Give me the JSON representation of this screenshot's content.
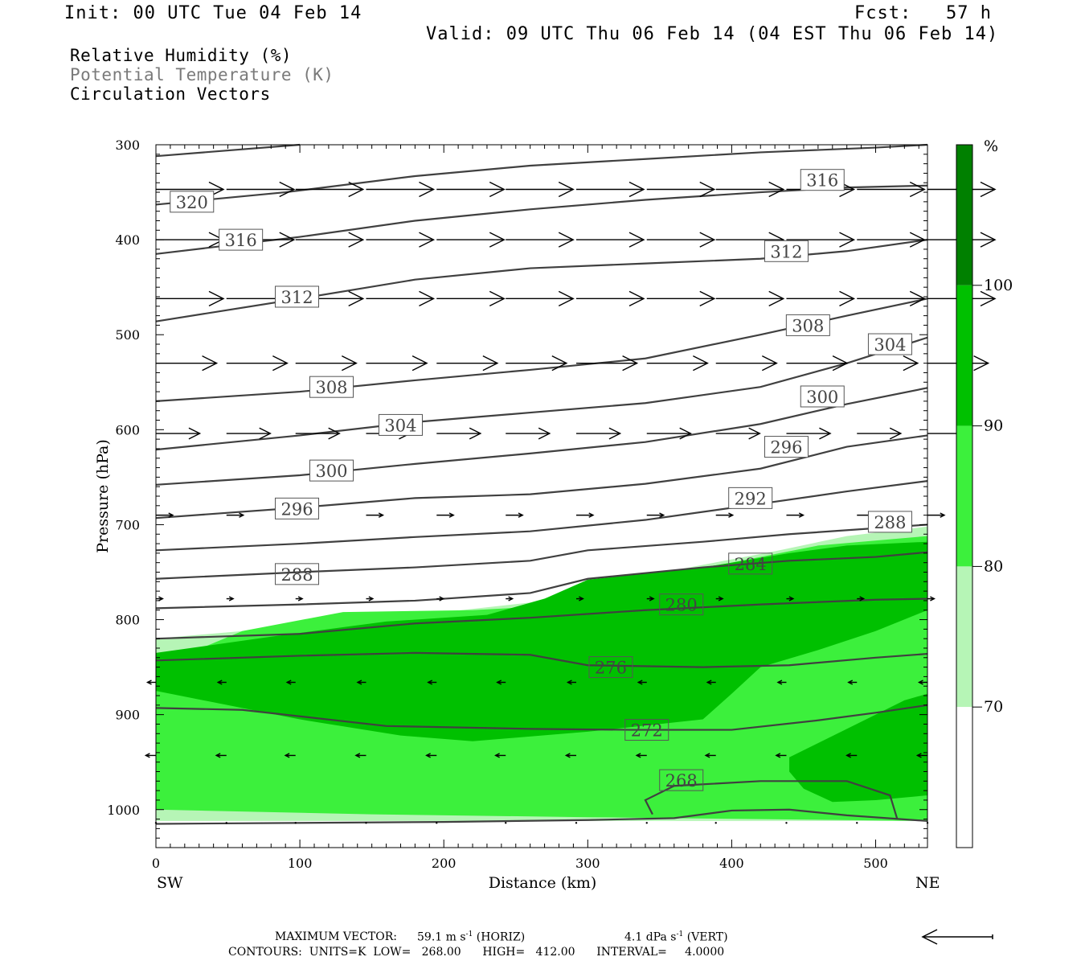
{
  "header": {
    "init": "Init: 00 UTC Tue 04 Feb 14",
    "fcst": "Fcst:   57 h",
    "valid": "Valid: 09 UTC Thu 06 Feb 14 (04 EST Thu 06 Feb 14)"
  },
  "legend": {
    "line1": "Relative Humidity (%)",
    "line2": "Potential Temperature (K)",
    "line3": "Circulation Vectors"
  },
  "colors": {
    "rh_70_80": "#b6f5b6",
    "rh_80_90": "#3cf03c",
    "rh_90_100": "#00c000",
    "rh_100": "#008000",
    "theta_line": "#404040",
    "legend2": "#7a7a7a"
  },
  "footer": {
    "max_vector_label": "MAXIMUM VECTOR:",
    "max_horiz": "59.1 m s",
    "max_horiz_unit": "(HORIZ)",
    "max_vert": "4.1 dPa s",
    "max_vert_unit": "(VERT)",
    "exponent": "-1",
    "contours": "CONTOURS:  UNITS=K  LOW=   268.00      HIGH=   412.00      INTERVAL=     4.0000"
  },
  "chart_data": {
    "type": "cross-section",
    "xlabel": "Distance (km)",
    "ylabel": "Pressure (hPa)",
    "xlim": [
      0,
      536
    ],
    "ylim": [
      1040,
      300
    ],
    "x_ticks": [
      0,
      100,
      200,
      300,
      400,
      500
    ],
    "y_ticks": [
      300,
      400,
      500,
      600,
      700,
      800,
      900,
      1000
    ],
    "x_end_labels": [
      "SW",
      "NE"
    ],
    "colorbar": {
      "unit": "%",
      "levels": [
        70,
        80,
        90,
        100
      ]
    },
    "rh_fill": [
      {
        "level": "70-80",
        "points": [
          [
            0,
            820
          ],
          [
            60,
            812
          ],
          [
            120,
            798
          ],
          [
            200,
            792
          ],
          [
            260,
            782
          ],
          [
            300,
            765
          ],
          [
            360,
            748
          ],
          [
            430,
            728
          ],
          [
            480,
            712
          ],
          [
            536,
            702
          ],
          [
            536,
            1012
          ],
          [
            0,
            1012
          ]
        ]
      },
      {
        "level": "80-90",
        "points": [
          [
            0,
            850
          ],
          [
            60,
            812
          ],
          [
            130,
            792
          ],
          [
            220,
            790
          ],
          [
            280,
            785
          ],
          [
            320,
            760
          ],
          [
            400,
            740
          ],
          [
            460,
            722
          ],
          [
            536,
            712
          ],
          [
            536,
            1012
          ],
          [
            420,
            1010
          ],
          [
            300,
            1008
          ],
          [
            150,
            1005
          ],
          [
            0,
            1000
          ]
        ]
      },
      {
        "level": "90-100",
        "points": [
          [
            0,
            835
          ],
          [
            80,
            818
          ],
          [
            160,
            802
          ],
          [
            230,
            795
          ],
          [
            270,
            778
          ],
          [
            300,
            758
          ],
          [
            380,
            745
          ],
          [
            440,
            730
          ],
          [
            480,
            722
          ],
          [
            536,
            718
          ],
          [
            536,
            790
          ],
          [
            500,
            812
          ],
          [
            460,
            832
          ],
          [
            420,
            850
          ],
          [
            400,
            878
          ],
          [
            380,
            905
          ],
          [
            300,
            918
          ],
          [
            220,
            928
          ],
          [
            170,
            922
          ],
          [
            100,
            905
          ],
          [
            0,
            875
          ]
        ]
      },
      {
        "level": "90-100",
        "points": [
          [
            440,
            945
          ],
          [
            480,
            915
          ],
          [
            520,
            885
          ],
          [
            536,
            878
          ],
          [
            536,
            985
          ],
          [
            500,
            990
          ],
          [
            470,
            992
          ],
          [
            450,
            978
          ],
          [
            440,
            960
          ]
        ]
      }
    ],
    "theta_contours": [
      {
        "value": 320,
        "points": [
          [
            0,
            312
          ],
          [
            100,
            300
          ]
        ]
      },
      {
        "value": 320,
        "points": [
          [
            0,
            363
          ],
          [
            90,
            350
          ],
          [
            180,
            333
          ],
          [
            260,
            322
          ],
          [
            340,
            315
          ],
          [
            420,
            308
          ],
          [
            500,
            303
          ],
          [
            536,
            300
          ]
        ]
      },
      {
        "value": 316,
        "points": [
          [
            0,
            415
          ],
          [
            100,
            397
          ],
          [
            180,
            380
          ],
          [
            260,
            368
          ],
          [
            340,
            358
          ],
          [
            420,
            350
          ],
          [
            480,
            345
          ],
          [
            536,
            343
          ]
        ]
      },
      {
        "value": 312,
        "points": [
          [
            0,
            486
          ],
          [
            100,
            462
          ],
          [
            180,
            442
          ],
          [
            260,
            430
          ],
          [
            340,
            425
          ],
          [
            420,
            420
          ],
          [
            480,
            412
          ],
          [
            536,
            400
          ]
        ]
      },
      {
        "value": 308,
        "points": [
          [
            0,
            570
          ],
          [
            100,
            560
          ],
          [
            180,
            548
          ],
          [
            260,
            537
          ],
          [
            340,
            525
          ],
          [
            420,
            500
          ],
          [
            480,
            480
          ],
          [
            536,
            462
          ]
        ]
      },
      {
        "value": 304,
        "points": [
          [
            0,
            621
          ],
          [
            100,
            606
          ],
          [
            180,
            592
          ],
          [
            260,
            582
          ],
          [
            340,
            572
          ],
          [
            420,
            555
          ],
          [
            480,
            530
          ],
          [
            536,
            503
          ]
        ]
      },
      {
        "value": 300,
        "points": [
          [
            0,
            658
          ],
          [
            100,
            648
          ],
          [
            180,
            636
          ],
          [
            260,
            625
          ],
          [
            340,
            613
          ],
          [
            420,
            594
          ],
          [
            480,
            573
          ],
          [
            536,
            556
          ]
        ]
      },
      {
        "value": 296,
        "points": [
          [
            0,
            693
          ],
          [
            100,
            682
          ],
          [
            180,
            672
          ],
          [
            260,
            668
          ],
          [
            340,
            657
          ],
          [
            420,
            641
          ],
          [
            480,
            618
          ],
          [
            536,
            606
          ]
        ]
      },
      {
        "value": 292,
        "points": [
          [
            0,
            727
          ],
          [
            100,
            720
          ],
          [
            180,
            713
          ],
          [
            260,
            707
          ],
          [
            340,
            695
          ],
          [
            420,
            678
          ],
          [
            480,
            665
          ],
          [
            536,
            654
          ]
        ]
      },
      {
        "value": 288,
        "points": [
          [
            0,
            757
          ],
          [
            100,
            750
          ],
          [
            180,
            745
          ],
          [
            260,
            738
          ],
          [
            300,
            727
          ],
          [
            380,
            718
          ],
          [
            440,
            710
          ],
          [
            536,
            700
          ]
        ]
      },
      {
        "value": 284,
        "points": [
          [
            0,
            788
          ],
          [
            100,
            784
          ],
          [
            180,
            780
          ],
          [
            260,
            772
          ],
          [
            300,
            757
          ],
          [
            380,
            745
          ],
          [
            440,
            738
          ],
          [
            500,
            734
          ],
          [
            536,
            729
          ]
        ]
      },
      {
        "value": 280,
        "points": [
          [
            0,
            820
          ],
          [
            100,
            815
          ],
          [
            180,
            804
          ],
          [
            260,
            798
          ],
          [
            340,
            790
          ],
          [
            420,
            784
          ],
          [
            500,
            779
          ],
          [
            536,
            778
          ]
        ]
      },
      {
        "value": 276,
        "points": [
          [
            0,
            843
          ],
          [
            100,
            838
          ],
          [
            180,
            835
          ],
          [
            260,
            837
          ],
          [
            300,
            848
          ],
          [
            380,
            850
          ],
          [
            440,
            848
          ],
          [
            500,
            840
          ],
          [
            536,
            836
          ]
        ]
      },
      {
        "value": 272,
        "points": [
          [
            0,
            893
          ],
          [
            60,
            895
          ],
          [
            160,
            912
          ],
          [
            260,
            915
          ],
          [
            330,
            916
          ],
          [
            400,
            916
          ],
          [
            460,
            906
          ],
          [
            500,
            898
          ],
          [
            536,
            890
          ]
        ]
      },
      {
        "value": 268,
        "points": [
          [
            345,
            1005
          ],
          [
            340,
            990
          ],
          [
            360,
            975
          ],
          [
            420,
            970
          ],
          [
            480,
            970
          ],
          [
            510,
            985
          ],
          [
            515,
            1010
          ]
        ]
      },
      {
        "value": 268,
        "points": [
          [
            0,
            1015
          ],
          [
            200,
            1013
          ],
          [
            300,
            1011
          ],
          [
            360,
            1009
          ],
          [
            400,
            1001
          ],
          [
            440,
            1000
          ],
          [
            480,
            1006
          ],
          [
            536,
            1012
          ]
        ]
      }
    ],
    "contour_labels": [
      {
        "value": "320",
        "x": 25,
        "p": 360
      },
      {
        "value": "316",
        "x": 59,
        "p": 400
      },
      {
        "value": "316",
        "x": 463,
        "p": 337
      },
      {
        "value": "312",
        "x": 98,
        "p": 460
      },
      {
        "value": "312",
        "x": 438,
        "p": 412
      },
      {
        "value": "308",
        "x": 122,
        "p": 555
      },
      {
        "value": "308",
        "x": 453,
        "p": 490
      },
      {
        "value": "304",
        "x": 170,
        "p": 595
      },
      {
        "value": "304",
        "x": 510,
        "p": 510
      },
      {
        "value": "300",
        "x": 122,
        "p": 643
      },
      {
        "value": "300",
        "x": 463,
        "p": 565
      },
      {
        "value": "296",
        "x": 98,
        "p": 683
      },
      {
        "value": "296",
        "x": 438,
        "p": 618
      },
      {
        "value": "292",
        "x": 413,
        "p": 672
      },
      {
        "value": "288",
        "x": 98,
        "p": 752
      },
      {
        "value": "288",
        "x": 510,
        "p": 697
      },
      {
        "value": "284",
        "x": 413,
        "p": 741
      },
      {
        "value": "280",
        "x": 365,
        "p": 784
      },
      {
        "value": "276",
        "x": 316,
        "p": 850
      },
      {
        "value": "272",
        "x": 341,
        "p": 916
      },
      {
        "value": "268",
        "x": 365,
        "p": 969
      }
    ],
    "vectors_x": [
      0,
      49,
      97,
      146,
      195,
      243,
      292,
      341,
      389,
      438,
      487,
      536
    ],
    "vector_rows": [
      {
        "p": 347,
        "u": 40,
        "w": 0
      },
      {
        "p": 400,
        "u": 40,
        "w": 0
      },
      {
        "p": 462,
        "u": 40,
        "w": 0
      },
      {
        "p": 530,
        "u": 36,
        "w": 0
      },
      {
        "p": 604,
        "u": 26,
        "w": 0
      },
      {
        "p": 690,
        "u": 10,
        "w": 0
      },
      {
        "p": 778,
        "u": 4,
        "w": 0
      },
      {
        "p": 866,
        "u": -5,
        "w": 0
      },
      {
        "p": 943,
        "u": -6,
        "w": 0
      },
      {
        "p": 1014,
        "u": 1,
        "w": 0
      }
    ]
  }
}
